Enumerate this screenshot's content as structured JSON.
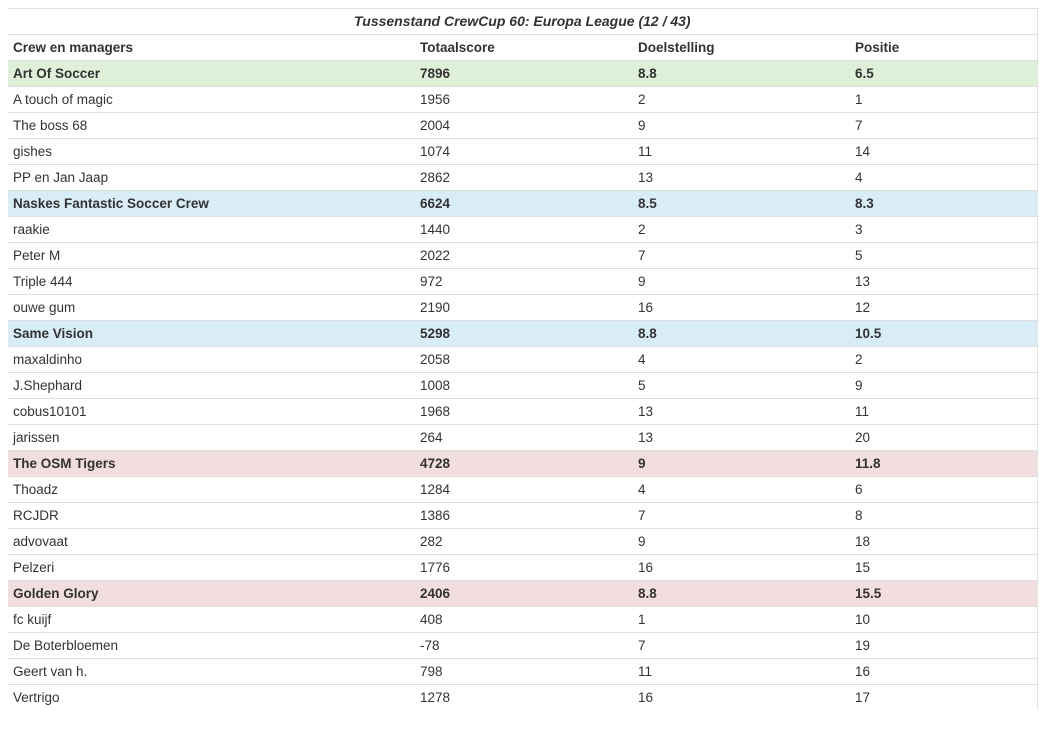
{
  "table": {
    "title": "Tussenstand CrewCup 60: Europa League (12 / 43)",
    "columns": {
      "name": "Crew en managers",
      "totaalscore": "Totaalscore",
      "doelstelling": "Doelstelling",
      "positie": "Positie"
    },
    "colors": {
      "crew_green_bg": "#dff0d8",
      "crew_blue_bg": "#d9edf7",
      "crew_red_bg": "#f2dede",
      "row_border": "#dddddd",
      "text": "#333333"
    },
    "rows": [
      {
        "type": "crew",
        "highlight": "green",
        "name": "Art Of Soccer",
        "totaalscore": "7896",
        "doelstelling": "8.8",
        "positie": "6.5"
      },
      {
        "type": "manager",
        "name": "A touch of magic",
        "totaalscore": "1956",
        "doelstelling": "2",
        "positie": "1"
      },
      {
        "type": "manager",
        "name": "The boss 68",
        "totaalscore": "2004",
        "doelstelling": "9",
        "positie": "7"
      },
      {
        "type": "manager",
        "name": "gishes",
        "totaalscore": "1074",
        "doelstelling": "11",
        "positie": "14"
      },
      {
        "type": "manager",
        "name": "PP en Jan Jaap",
        "totaalscore": "2862",
        "doelstelling": "13",
        "positie": "4"
      },
      {
        "type": "crew",
        "highlight": "blue",
        "name": "Naskes Fantastic Soccer Crew",
        "totaalscore": "6624",
        "doelstelling": "8.5",
        "positie": "8.3"
      },
      {
        "type": "manager",
        "name": "raakie",
        "totaalscore": "1440",
        "doelstelling": "2",
        "positie": "3"
      },
      {
        "type": "manager",
        "name": "Peter M",
        "totaalscore": "2022",
        "doelstelling": "7",
        "positie": "5"
      },
      {
        "type": "manager",
        "name": "Triple 444",
        "totaalscore": "972",
        "doelstelling": "9",
        "positie": "13"
      },
      {
        "type": "manager",
        "name": "ouwe gum",
        "totaalscore": "2190",
        "doelstelling": "16",
        "positie": "12"
      },
      {
        "type": "crew",
        "highlight": "blue",
        "name": "Same Vision",
        "totaalscore": "5298",
        "doelstelling": "8.8",
        "positie": "10.5"
      },
      {
        "type": "manager",
        "name": "maxaldinho",
        "totaalscore": "2058",
        "doelstelling": "4",
        "positie": "2"
      },
      {
        "type": "manager",
        "name": "J.Shephard",
        "totaalscore": "1008",
        "doelstelling": "5",
        "positie": "9"
      },
      {
        "type": "manager",
        "name": "cobus10101",
        "totaalscore": "1968",
        "doelstelling": "13",
        "positie": "11"
      },
      {
        "type": "manager",
        "name": "jarissen",
        "totaalscore": "264",
        "doelstelling": "13",
        "positie": "20"
      },
      {
        "type": "crew",
        "highlight": "red",
        "name": "The OSM Tigers",
        "totaalscore": "4728",
        "doelstelling": "9",
        "positie": "11.8"
      },
      {
        "type": "manager",
        "name": "Thoadz",
        "totaalscore": "1284",
        "doelstelling": "4",
        "positie": "6"
      },
      {
        "type": "manager",
        "name": "RCJDR",
        "totaalscore": "1386",
        "doelstelling": "7",
        "positie": "8"
      },
      {
        "type": "manager",
        "name": "advovaat",
        "totaalscore": "282",
        "doelstelling": "9",
        "positie": "18"
      },
      {
        "type": "manager",
        "name": "Pelzeri",
        "totaalscore": "1776",
        "doelstelling": "16",
        "positie": "15"
      },
      {
        "type": "crew",
        "highlight": "red",
        "name": "Golden Glory",
        "totaalscore": "2406",
        "doelstelling": "8.8",
        "positie": "15.5"
      },
      {
        "type": "manager",
        "name": "fc kuijf",
        "totaalscore": "408",
        "doelstelling": "1",
        "positie": "10"
      },
      {
        "type": "manager",
        "name": "De Boterbloemen",
        "totaalscore": "-78",
        "doelstelling": "7",
        "positie": "19"
      },
      {
        "type": "manager",
        "name": "Geert van h.",
        "totaalscore": "798",
        "doelstelling": "11",
        "positie": "16"
      },
      {
        "type": "manager",
        "name": "Vertrigo",
        "totaalscore": "1278",
        "doelstelling": "16",
        "positie": "17"
      }
    ]
  },
  "chart_data": {
    "type": "table",
    "title": "Tussenstand CrewCup 60: Europa League (12 / 43)",
    "columns": [
      "Crew en managers",
      "Totaalscore",
      "Doelstelling",
      "Positie"
    ],
    "rows": [
      [
        "Art Of Soccer",
        7896,
        8.8,
        6.5
      ],
      [
        "A touch of magic",
        1956,
        2,
        1
      ],
      [
        "The boss 68",
        2004,
        9,
        7
      ],
      [
        "gishes",
        1074,
        11,
        14
      ],
      [
        "PP en Jan Jaap",
        2862,
        13,
        4
      ],
      [
        "Naskes Fantastic Soccer Crew",
        6624,
        8.5,
        8.3
      ],
      [
        "raakie",
        1440,
        2,
        3
      ],
      [
        "Peter M",
        2022,
        7,
        5
      ],
      [
        "Triple 444",
        972,
        9,
        13
      ],
      [
        "ouwe gum",
        2190,
        16,
        12
      ],
      [
        "Same Vision",
        5298,
        8.8,
        10.5
      ],
      [
        "maxaldinho",
        2058,
        4,
        2
      ],
      [
        "J.Shephard",
        1008,
        5,
        9
      ],
      [
        "cobus10101",
        1968,
        13,
        11
      ],
      [
        "jarissen",
        264,
        13,
        20
      ],
      [
        "The OSM Tigers",
        4728,
        9,
        11.8
      ],
      [
        "Thoadz",
        1284,
        4,
        6
      ],
      [
        "RCJDR",
        1386,
        7,
        8
      ],
      [
        "advovaat",
        282,
        9,
        18
      ],
      [
        "Pelzeri",
        1776,
        16,
        15
      ],
      [
        "Golden Glory",
        2406,
        8.8,
        15.5
      ],
      [
        "fc kuijf",
        408,
        1,
        10
      ],
      [
        "De Boterbloemen",
        -78,
        7,
        19
      ],
      [
        "Geert van h.",
        798,
        11,
        16
      ],
      [
        "Vertrigo",
        1278,
        16,
        17
      ]
    ],
    "crew_row_indices": [
      0,
      5,
      10,
      15,
      20
    ],
    "crew_row_highlights": [
      "green",
      "blue",
      "blue",
      "red",
      "red"
    ],
    "layout": "crew summary rows highlighted; 4 manager rows follow each crew"
  }
}
